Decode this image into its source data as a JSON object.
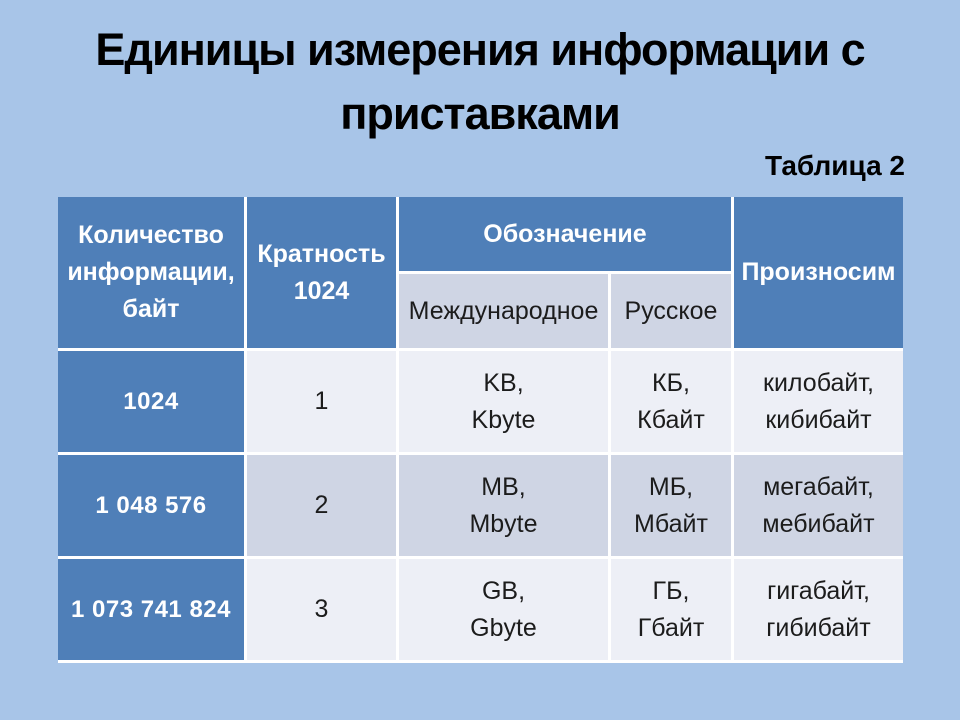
{
  "slide": {
    "title_line1": "Единицы измерения информации с",
    "title_line2": "приставками",
    "caption": "Таблица 2"
  },
  "table": {
    "header": {
      "amount": "Количество информации, байт",
      "multiplicity": "Кратность 1024",
      "designation": "Обозначение",
      "designation_international": "Международное",
      "designation_russian": "Русское",
      "pronounce": "Произносим"
    },
    "rows": [
      {
        "amount": "1024",
        "multiplicity": "1",
        "international": "KB,\nKbyte",
        "russian": "КБ,\nКбайт",
        "pronounce": "килобайт,\nкибибайт"
      },
      {
        "amount": "1 048 576",
        "multiplicity": "2",
        "international": "MB,\nMbyte",
        "russian": "МБ,\nМбайт",
        "pronounce": "мегабайт,\nмебибайт"
      },
      {
        "amount": "1 073 741 824",
        "multiplicity": "3",
        "international": "GB,\nGbyte",
        "russian": "ГБ,\nГбайт",
        "pronounce": "гигабайт,\nгибибайт"
      }
    ]
  },
  "colors": {
    "slide_bg": "#a8c5e8",
    "header_bg": "#4f7fb8",
    "band_light": "#edeff6",
    "band_dark": "#cfd5e4",
    "border_color": "#ffffff"
  }
}
